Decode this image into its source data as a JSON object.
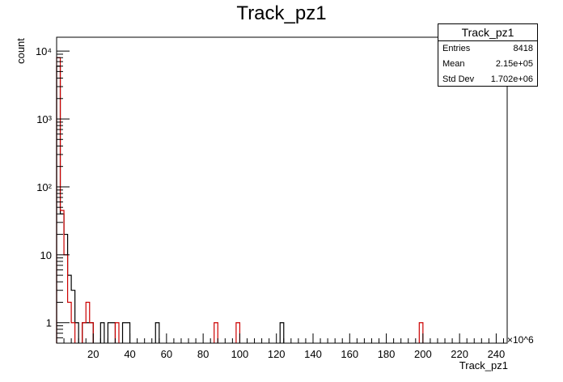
{
  "chart_data": {
    "type": "histogram",
    "title": "Track_pz1",
    "xlabel": "Track_pz1",
    "ylabel": "count",
    "x_multiplier": "×10^6",
    "yscale": "log",
    "xlim": [
      0,
      246
    ],
    "ylim": [
      0.5,
      16000
    ],
    "bin_width": 2,
    "x_ticks": [
      20,
      40,
      60,
      80,
      100,
      120,
      140,
      160,
      180,
      200,
      220,
      240
    ],
    "x_tick_labels": [
      "20",
      "40",
      "60",
      "80",
      "100",
      "120",
      "140",
      "160",
      "180",
      "200",
      "220",
      "240"
    ],
    "y_ticks": [
      1,
      10,
      100,
      1000,
      10000
    ],
    "y_tick_labels": [
      "1",
      "10",
      "10²",
      "10³",
      "10⁴"
    ],
    "series": [
      {
        "color": "#000000",
        "bins": [
          [
            0,
            6000
          ],
          [
            2,
            40
          ],
          [
            4,
            20
          ],
          [
            6,
            5
          ],
          [
            8,
            3
          ],
          [
            10,
            1
          ],
          [
            14,
            1
          ],
          [
            16,
            1
          ],
          [
            18,
            1
          ],
          [
            24,
            1
          ],
          [
            28,
            1
          ],
          [
            30,
            1
          ],
          [
            36,
            1
          ],
          [
            38,
            1
          ],
          [
            54,
            1
          ],
          [
            122,
            1
          ]
        ]
      },
      {
        "color": "#cc0000",
        "bins": [
          [
            0,
            8000
          ],
          [
            2,
            45
          ],
          [
            4,
            10
          ],
          [
            6,
            2
          ],
          [
            8,
            1
          ],
          [
            14,
            1
          ],
          [
            16,
            2
          ],
          [
            18,
            1
          ],
          [
            32,
            1
          ],
          [
            86,
            1
          ],
          [
            98,
            1
          ],
          [
            198,
            1
          ]
        ]
      }
    ],
    "stats": {
      "title": "Track_pz1",
      "entries_label": "Entries",
      "entries": "8418",
      "mean_label": "Mean",
      "mean": "2.15e+05",
      "std_label": "Std Dev",
      "std": "1.702e+06"
    },
    "legend_position": "top-right",
    "grid": false
  }
}
